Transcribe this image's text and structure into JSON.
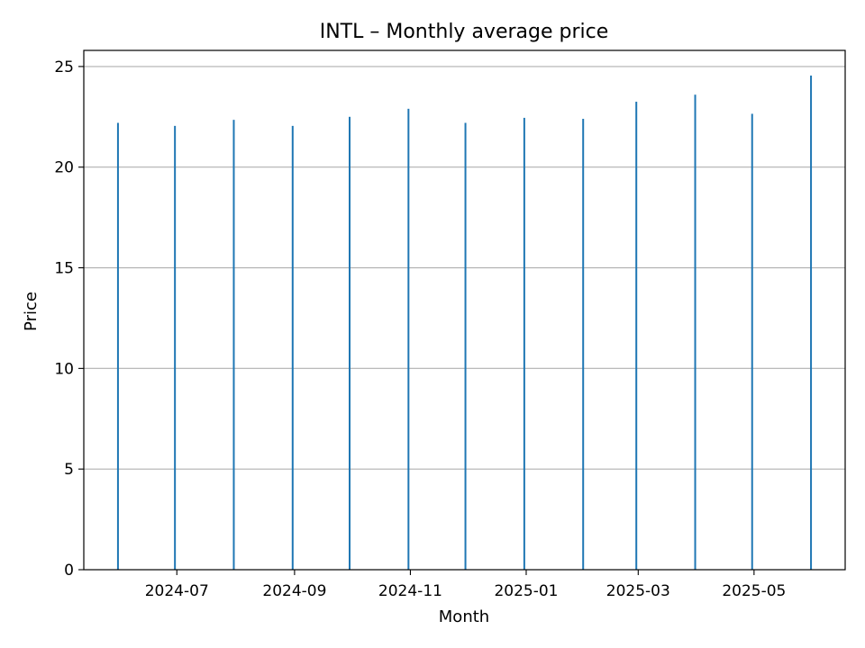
{
  "chart_data": {
    "type": "bar",
    "title": "INTL – Monthly average price",
    "xlabel": "Month",
    "ylabel": "Price",
    "ylim": [
      0,
      25.8
    ],
    "yticks": [
      0,
      5,
      10,
      15,
      20,
      25
    ],
    "x_tick_labels": [
      "2024-07",
      "2024-09",
      "2024-11",
      "2025-01",
      "2025-03",
      "2025-05"
    ],
    "categories": [
      "2024-05-31",
      "2024-06-30",
      "2024-07-31",
      "2024-08-31",
      "2024-09-30",
      "2024-10-31",
      "2024-11-30",
      "2024-12-31",
      "2025-01-31",
      "2025-02-28",
      "2025-03-31",
      "2025-04-30",
      "2025-05-31"
    ],
    "values": [
      22.2,
      22.05,
      22.35,
      22.05,
      22.5,
      22.9,
      22.2,
      22.45,
      22.4,
      23.25,
      23.6,
      22.65,
      24.55
    ],
    "grid": "y",
    "bar_color": "#1f77b4"
  }
}
